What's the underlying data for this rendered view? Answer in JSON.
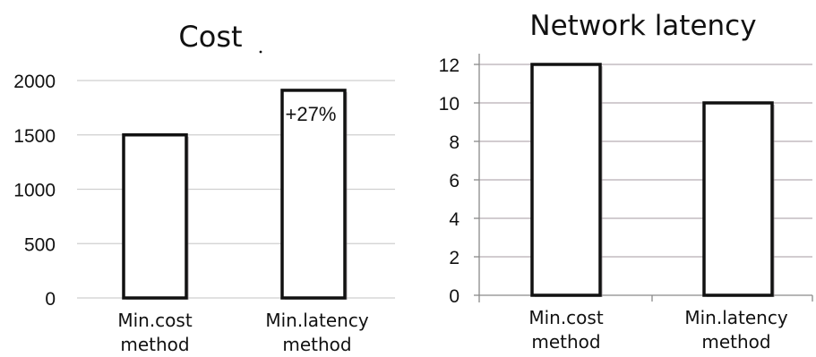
{
  "chart_data": [
    {
      "type": "bar",
      "title": "Cost",
      "categories": [
        [
          "Min.cost",
          "method"
        ],
        [
          "Min.latency",
          "method"
        ]
      ],
      "values": [
        1500,
        1910
      ],
      "ylim": [
        0,
        2000
      ],
      "yticks": [
        "0",
        "500",
        "1000",
        "1500",
        "2000"
      ],
      "grid": true,
      "annotations": [
        {
          "category_index": 1,
          "text": "+27%"
        }
      ],
      "colors": {
        "bar_fill": "#ffffff",
        "bar_stroke": "#111111",
        "grid": "#cfcfcf"
      }
    },
    {
      "type": "bar",
      "title": "Network latency",
      "categories": [
        [
          "Min.cost",
          "method"
        ],
        [
          "Min.latency",
          "method"
        ]
      ],
      "values": [
        12,
        10
      ],
      "ylim": [
        0,
        12
      ],
      "yticks": [
        "0",
        "2",
        "4",
        "6",
        "8",
        "10",
        "12"
      ],
      "grid": true,
      "colors": {
        "bar_fill": "#ffffff",
        "bar_stroke": "#111111",
        "grid": "#b8aeb4"
      }
    }
  ]
}
